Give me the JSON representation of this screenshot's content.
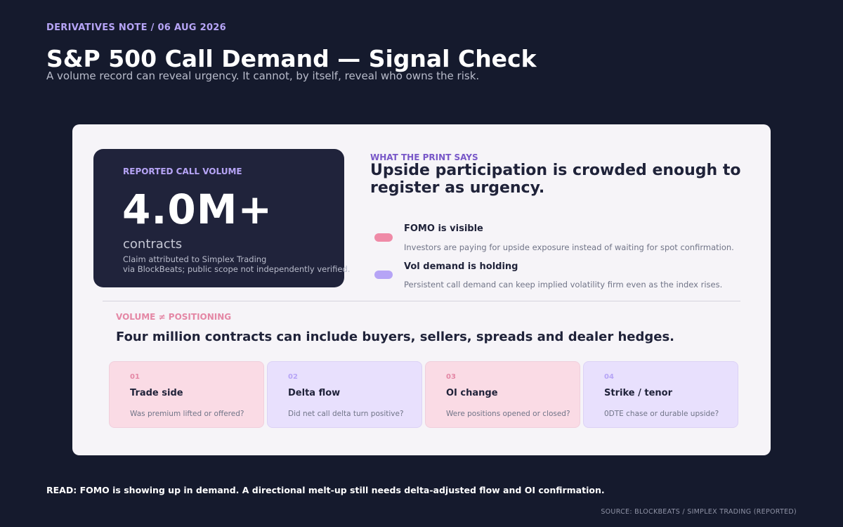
{
  "header": {
    "kicker": "DERIVATIVES NOTE  /  06 AUG 2026",
    "title": "S&P 500 Call Demand — Signal Check",
    "subtitle": "A volume record can reveal urgency. It cannot, by itself, reveal who owns the risk."
  },
  "stat": {
    "label": "REPORTED CALL VOLUME",
    "value": "4.0M+",
    "unit": "contracts",
    "note_line1": "Claim attributed to Simplex Trading",
    "note_line2": "via BlockBeats; public scope not independently verified."
  },
  "print": {
    "kicker": "WHAT THE PRINT SAYS",
    "headline": "Upside participation is crowded enough to register as urgency.",
    "bullets": [
      {
        "title": "FOMO is visible",
        "desc": "Investors are paying for upside exposure instead of waiting for spot confirmation.",
        "color": "#ef8aa7"
      },
      {
        "title": "Vol demand is holding",
        "desc": "Persistent call demand can keep implied volatility firm even as the index rises.",
        "color": "#b6a4f6"
      }
    ]
  },
  "volume": {
    "kicker": "VOLUME ≠ POSITIONING",
    "headline": "Four million contracts can include buyers, sellers, spreads and dealer hedges."
  },
  "checks": [
    {
      "num": "01",
      "title": "Trade side",
      "desc": "Was premium lifted or offered?"
    },
    {
      "num": "02",
      "title": "Delta flow",
      "desc": "Did net call delta turn positive?"
    },
    {
      "num": "03",
      "title": "OI change",
      "desc": "Were positions opened or closed?"
    },
    {
      "num": "04",
      "title": "Strike / tenor",
      "desc": "0DTE chase or durable upside?"
    }
  ],
  "footer": {
    "read": "READ: FOMO is showing up in demand. A directional melt-up still needs delta-adjusted flow and OI confirmation.",
    "source": "SOURCE: BLOCKBEATS / SIMPLEX TRADING (REPORTED)"
  }
}
